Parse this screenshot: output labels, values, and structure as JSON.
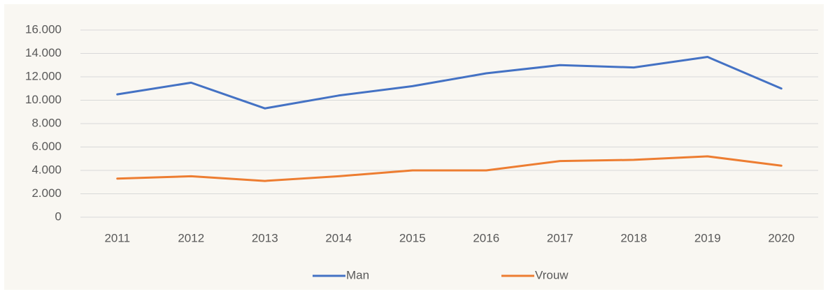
{
  "chart_data": {
    "type": "line",
    "categories": [
      "2011",
      "2012",
      "2013",
      "2014",
      "2015",
      "2016",
      "2017",
      "2018",
      "2019",
      "2020"
    ],
    "series": [
      {
        "name": "Man",
        "color": "#4472c4",
        "values": [
          10500,
          11500,
          9300,
          10400,
          11200,
          12300,
          13000,
          12800,
          13700,
          11000
        ]
      },
      {
        "name": "Vrouw",
        "color": "#ed7d31",
        "values": [
          3300,
          3500,
          3100,
          3500,
          4000,
          4000,
          4800,
          4900,
          5200,
          4400
        ]
      }
    ],
    "ylim": [
      0,
      16000
    ],
    "yticks": [
      0,
      {
        "value": 2000,
        "label": "2.000"
      },
      {
        "value": 4000,
        "label": "4.000"
      },
      {
        "value": 6000,
        "label": "6.000"
      },
      {
        "value": 8000,
        "label": "8.000"
      },
      {
        "value": 10000,
        "label": "10.000"
      },
      {
        "value": 12000,
        "label": "12.000"
      },
      {
        "value": 14000,
        "label": "14.000"
      },
      {
        "value": 16000,
        "label": "16.000"
      }
    ],
    "grid": true,
    "legend": "bottom"
  }
}
